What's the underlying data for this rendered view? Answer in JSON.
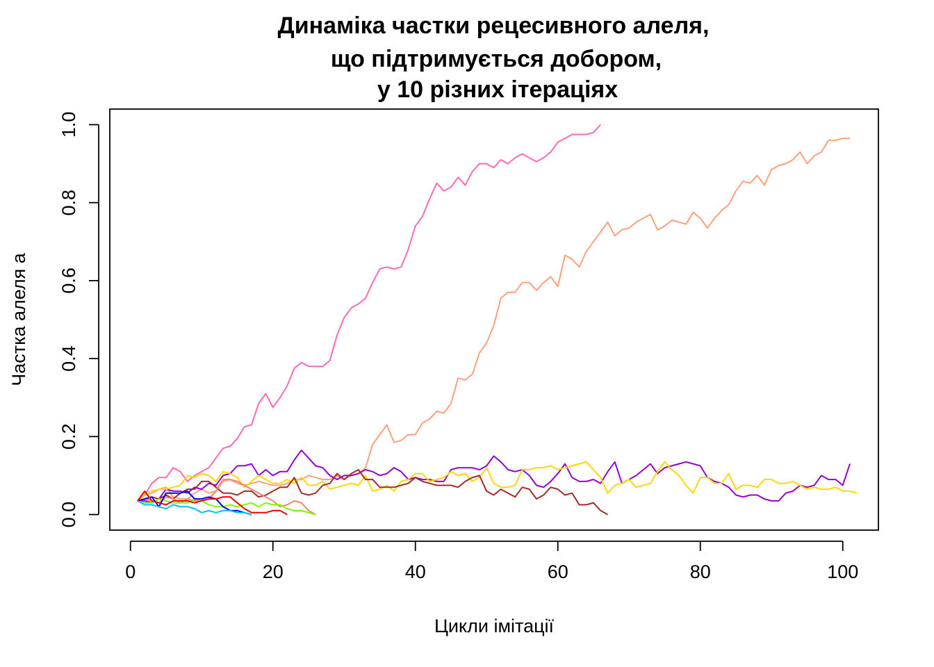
{
  "chart_data": {
    "type": "line",
    "title_lines": [
      "Динаміка частки рецесивного алеля,",
      "що підтримується добором,",
      "у 10 різних ітераціях"
    ],
    "xlabel": "Цикли імітації",
    "ylabel": "Частка алеля a",
    "xlim": [
      -2.9,
      105
    ],
    "ylim": [
      -0.04,
      1.04
    ],
    "xticks": [
      0,
      20,
      40,
      60,
      80,
      100
    ],
    "yticks": [
      0.0,
      0.2,
      0.4,
      0.6,
      0.8,
      1.0
    ],
    "xtick_labels": [
      "0",
      "20",
      "40",
      "60",
      "80",
      "100"
    ],
    "ytick_labels": [
      "0.0",
      "0.2",
      "0.4",
      "0.6",
      "0.8",
      "1.0"
    ],
    "grid": false,
    "legend": "none",
    "x_start": 1,
    "series": [
      {
        "color": "#FF69B4",
        "values": [
          0.035,
          0.05,
          0.08,
          0.095,
          0.095,
          0.12,
          0.11,
          0.085,
          0.1,
          0.11,
          0.12,
          0.145,
          0.17,
          0.175,
          0.195,
          0.225,
          0.23,
          0.285,
          0.31,
          0.275,
          0.3,
          0.33,
          0.375,
          0.39,
          0.38,
          0.38,
          0.38,
          0.395,
          0.46,
          0.505,
          0.53,
          0.54,
          0.555,
          0.595,
          0.63,
          0.635,
          0.63,
          0.635,
          0.68,
          0.74,
          0.765,
          0.81,
          0.85,
          0.83,
          0.84,
          0.865,
          0.845,
          0.88,
          0.9,
          0.9,
          0.89,
          0.91,
          0.9,
          0.915,
          0.925,
          0.915,
          0.905,
          0.915,
          0.93,
          0.955,
          0.965,
          0.975,
          0.975,
          0.975,
          0.98,
          1.0
        ]
      },
      {
        "color": "#FFA07A",
        "values": [
          0.035,
          0.05,
          0.055,
          0.065,
          0.07,
          0.045,
          0.04,
          0.04,
          0.055,
          0.065,
          0.055,
          0.06,
          0.085,
          0.09,
          0.08,
          0.075,
          0.08,
          0.085,
          0.08,
          0.075,
          0.075,
          0.08,
          0.09,
          0.09,
          0.1,
          0.095,
          0.09,
          0.09,
          0.1,
          0.09,
          0.1,
          0.105,
          0.12,
          0.18,
          0.205,
          0.23,
          0.185,
          0.19,
          0.205,
          0.205,
          0.235,
          0.245,
          0.265,
          0.26,
          0.285,
          0.35,
          0.345,
          0.36,
          0.415,
          0.44,
          0.485,
          0.555,
          0.57,
          0.57,
          0.595,
          0.595,
          0.575,
          0.595,
          0.61,
          0.585,
          0.665,
          0.655,
          0.635,
          0.675,
          0.7,
          0.725,
          0.75,
          0.715,
          0.73,
          0.735,
          0.75,
          0.76,
          0.77,
          0.73,
          0.74,
          0.755,
          0.75,
          0.745,
          0.775,
          0.76,
          0.735,
          0.76,
          0.78,
          0.795,
          0.83,
          0.855,
          0.85,
          0.87,
          0.845,
          0.885,
          0.895,
          0.9,
          0.91,
          0.93,
          0.9,
          0.92,
          0.93,
          0.96,
          0.96,
          0.965,
          0.965
        ]
      },
      {
        "color": "#9400D3",
        "values": [
          0.035,
          0.035,
          0.03,
          0.04,
          0.065,
          0.06,
          0.06,
          0.055,
          0.07,
          0.065,
          0.08,
          0.075,
          0.1,
          0.105,
          0.125,
          0.125,
          0.13,
          0.1,
          0.115,
          0.1,
          0.11,
          0.11,
          0.14,
          0.165,
          0.145,
          0.125,
          0.12,
          0.1,
          0.09,
          0.1,
          0.1,
          0.105,
          0.115,
          0.11,
          0.1,
          0.105,
          0.12,
          0.11,
          0.09,
          0.095,
          0.09,
          0.09,
          0.085,
          0.085,
          0.115,
          0.12,
          0.12,
          0.12,
          0.115,
          0.125,
          0.15,
          0.135,
          0.115,
          0.11,
          0.115,
          0.1,
          0.075,
          0.07,
          0.085,
          0.105,
          0.13,
          0.095,
          0.085,
          0.085,
          0.09,
          0.08,
          0.11,
          0.135,
          0.08,
          0.09,
          0.1,
          0.115,
          0.13,
          0.105,
          0.12,
          0.125,
          0.13,
          0.135,
          0.13,
          0.125,
          0.095,
          0.085,
          0.08,
          0.07,
          0.05,
          0.045,
          0.05,
          0.05,
          0.04,
          0.035,
          0.035,
          0.055,
          0.06,
          0.075,
          0.07,
          0.075,
          0.1,
          0.09,
          0.09,
          0.075,
          0.13
        ]
      },
      {
        "color": "#FFD700",
        "values": [
          0.035,
          0.055,
          0.06,
          0.065,
          0.065,
          0.07,
          0.075,
          0.1,
          0.095,
          0.105,
          0.1,
          0.085,
          0.11,
          0.105,
          0.095,
          0.07,
          0.085,
          0.1,
          0.09,
          0.08,
          0.08,
          0.09,
          0.08,
          0.095,
          0.075,
          0.075,
          0.085,
          0.065,
          0.07,
          0.075,
          0.08,
          0.075,
          0.1,
          0.06,
          0.065,
          0.075,
          0.06,
          0.085,
          0.09,
          0.105,
          0.105,
          0.085,
          0.09,
          0.095,
          0.11,
          0.1,
          0.105,
          0.085,
          0.095,
          0.12,
          0.08,
          0.07,
          0.07,
          0.075,
          0.115,
          0.115,
          0.12,
          0.12,
          0.125,
          0.115,
          0.12,
          0.125,
          0.13,
          0.135,
          0.115,
          0.095,
          0.055,
          0.075,
          0.08,
          0.09,
          0.07,
          0.075,
          0.08,
          0.11,
          0.135,
          0.115,
          0.1,
          0.075,
          0.055,
          0.095,
          0.095,
          0.08,
          0.08,
          0.105,
          0.065,
          0.075,
          0.075,
          0.07,
          0.09,
          0.09,
          0.08,
          0.08,
          0.085,
          0.075,
          0.065,
          0.07,
          0.065,
          0.065,
          0.07,
          0.06,
          0.06,
          0.055
        ]
      },
      {
        "color": "#A52A2A",
        "values": [
          0.035,
          0.04,
          0.045,
          0.04,
          0.05,
          0.04,
          0.055,
          0.065,
          0.065,
          0.085,
          0.085,
          0.07,
          0.055,
          0.055,
          0.05,
          0.06,
          0.06,
          0.045,
          0.05,
          0.06,
          0.07,
          0.07,
          0.095,
          0.055,
          0.05,
          0.055,
          0.075,
          0.08,
          0.105,
          0.09,
          0.105,
          0.115,
          0.09,
          0.09,
          0.07,
          0.07,
          0.07,
          0.075,
          0.08,
          0.095,
          0.085,
          0.08,
          0.075,
          0.075,
          0.075,
          0.07,
          0.085,
          0.095,
          0.1,
          0.06,
          0.05,
          0.065,
          0.055,
          0.045,
          0.07,
          0.065,
          0.04,
          0.05,
          0.07,
          0.065,
          0.05,
          0.055,
          0.025,
          0.025,
          0.03,
          0.01,
          0.0
        ]
      },
      {
        "color": "#FA8072",
        "values": [
          0.035,
          0.04,
          0.035,
          0.03,
          0.045,
          0.04,
          0.03,
          0.04,
          0.035,
          0.035,
          0.04,
          0.06,
          0.09,
          0.09,
          0.085,
          0.075,
          0.065,
          0.055,
          0.045,
          0.035,
          0.02,
          0.025,
          0.035,
          0.03,
          0.01,
          0.0
        ]
      },
      {
        "color": "#7CFC00",
        "values": [
          0.035,
          0.03,
          0.03,
          0.04,
          0.035,
          0.03,
          0.03,
          0.03,
          0.04,
          0.035,
          0.025,
          0.02,
          0.02,
          0.025,
          0.02,
          0.025,
          0.03,
          0.02,
          0.03,
          0.025,
          0.025,
          0.015,
          0.01,
          0.01,
          0.005,
          0.0
        ]
      },
      {
        "color": "#0000FF",
        "values": [
          0.035,
          0.04,
          0.045,
          0.02,
          0.055,
          0.055,
          0.055,
          0.06,
          0.04,
          0.04,
          0.045,
          0.04,
          0.02,
          0.01,
          0.01,
          0.005,
          0.0
        ]
      },
      {
        "color": "#00BFFF",
        "values": [
          0.035,
          0.025,
          0.025,
          0.02,
          0.015,
          0.025,
          0.02,
          0.02,
          0.015,
          0.005,
          0.01,
          0.005,
          0.01,
          0.01,
          0.005,
          0.005,
          0.0
        ]
      },
      {
        "color": "#EE0000",
        "values": [
          0.035,
          0.06,
          0.035,
          0.03,
          0.025,
          0.035,
          0.035,
          0.035,
          0.03,
          0.035,
          0.04,
          0.04,
          0.045,
          0.045,
          0.03,
          0.015,
          0.005,
          0.005,
          0.005,
          0.01,
          0.01,
          0.0
        ]
      }
    ]
  }
}
